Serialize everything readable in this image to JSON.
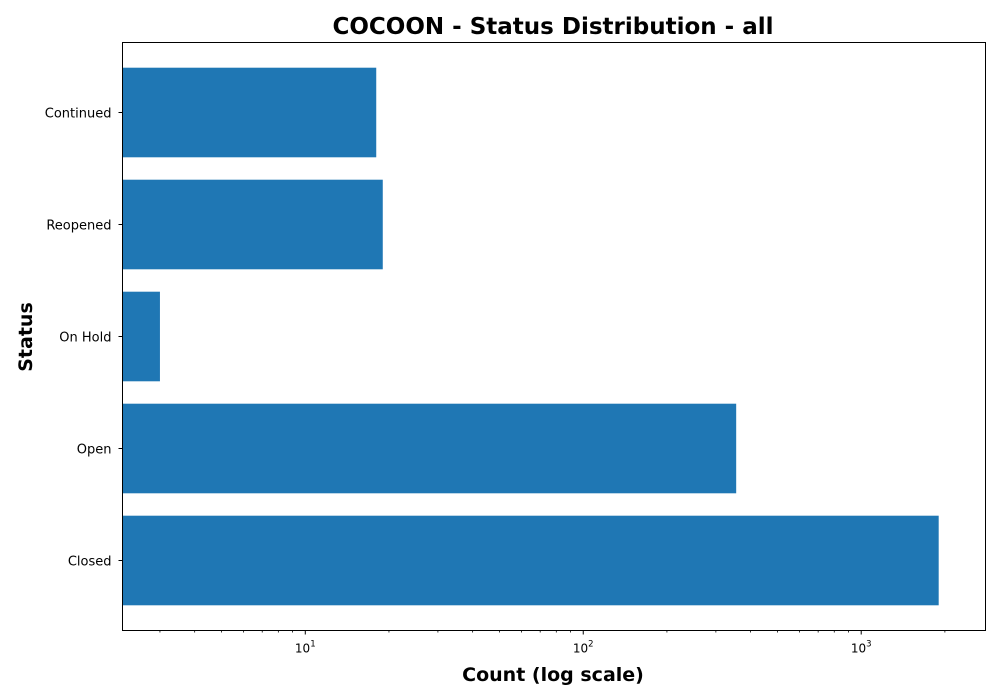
{
  "chart_data": {
    "type": "bar",
    "orientation": "horizontal",
    "title": "COCOON - Status Distribution - all",
    "xlabel": "Count (log scale)",
    "ylabel": "Status",
    "x_scale": "log",
    "xlim": [
      2.2,
      2800
    ],
    "categories": [
      "Closed",
      "Open",
      "On Hold",
      "Reopened",
      "Continued"
    ],
    "values": [
      1900,
      355,
      3,
      19,
      18
    ],
    "x_ticks": [
      {
        "base": "10",
        "exp": "1",
        "value": 10
      },
      {
        "base": "10",
        "exp": "2",
        "value": 100
      },
      {
        "base": "10",
        "exp": "3",
        "value": 1000
      }
    ],
    "bar_color": "#1f77b4",
    "grid": false,
    "legend": "none"
  }
}
